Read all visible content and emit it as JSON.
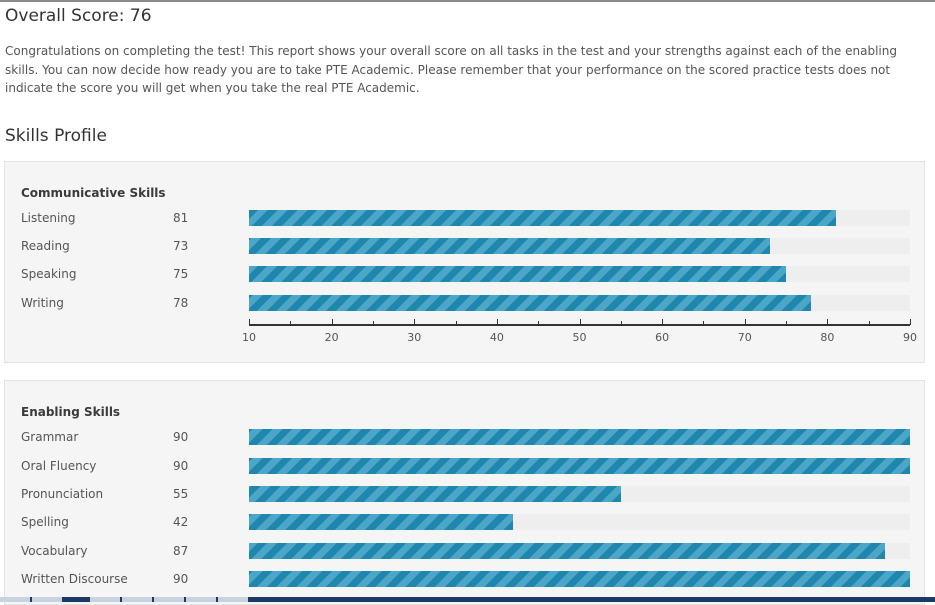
{
  "header": {
    "overall_score_text": "Overall Score: 76"
  },
  "intro": {
    "text": "Congratulations on completing the test! This report shows your overall score on all tasks in the test and your strengths against each of the enabling skills. You can now decide how ready you are to take PTE Academic. Please remember that your performance on the scored practice tests does not indicate the score you will get when you take the real PTE Academic."
  },
  "skills_profile": {
    "title": "Skills Profile",
    "communicative": {
      "title": "Communicative Skills",
      "skills": [
        {
          "name": "Listening",
          "score": "81",
          "value": 81
        },
        {
          "name": "Reading",
          "score": "73",
          "value": 73
        },
        {
          "name": "Speaking",
          "score": "75",
          "value": 75
        },
        {
          "name": "Writing",
          "score": "78",
          "value": 78
        }
      ]
    },
    "axis": {
      "min": 10,
      "max": 90,
      "labels": [
        "10",
        "20",
        "30",
        "40",
        "50",
        "60",
        "70",
        "80",
        "90"
      ]
    },
    "enabling": {
      "title": "Enabling Skills",
      "skills": [
        {
          "name": "Grammar",
          "score": "90",
          "value": 90
        },
        {
          "name": "Oral Fluency",
          "score": "90",
          "value": 90
        },
        {
          "name": "Pronunciation",
          "score": "55",
          "value": 55
        },
        {
          "name": "Spelling",
          "score": "42",
          "value": 42
        },
        {
          "name": "Vocabulary",
          "score": "87",
          "value": 87
        },
        {
          "name": "Written Discourse",
          "score": "90",
          "value": 90
        }
      ]
    }
  },
  "colors": {
    "bar_dark": "#1f87ad",
    "bar_light": "#4ba6c7",
    "track": "#eeeeee"
  }
}
